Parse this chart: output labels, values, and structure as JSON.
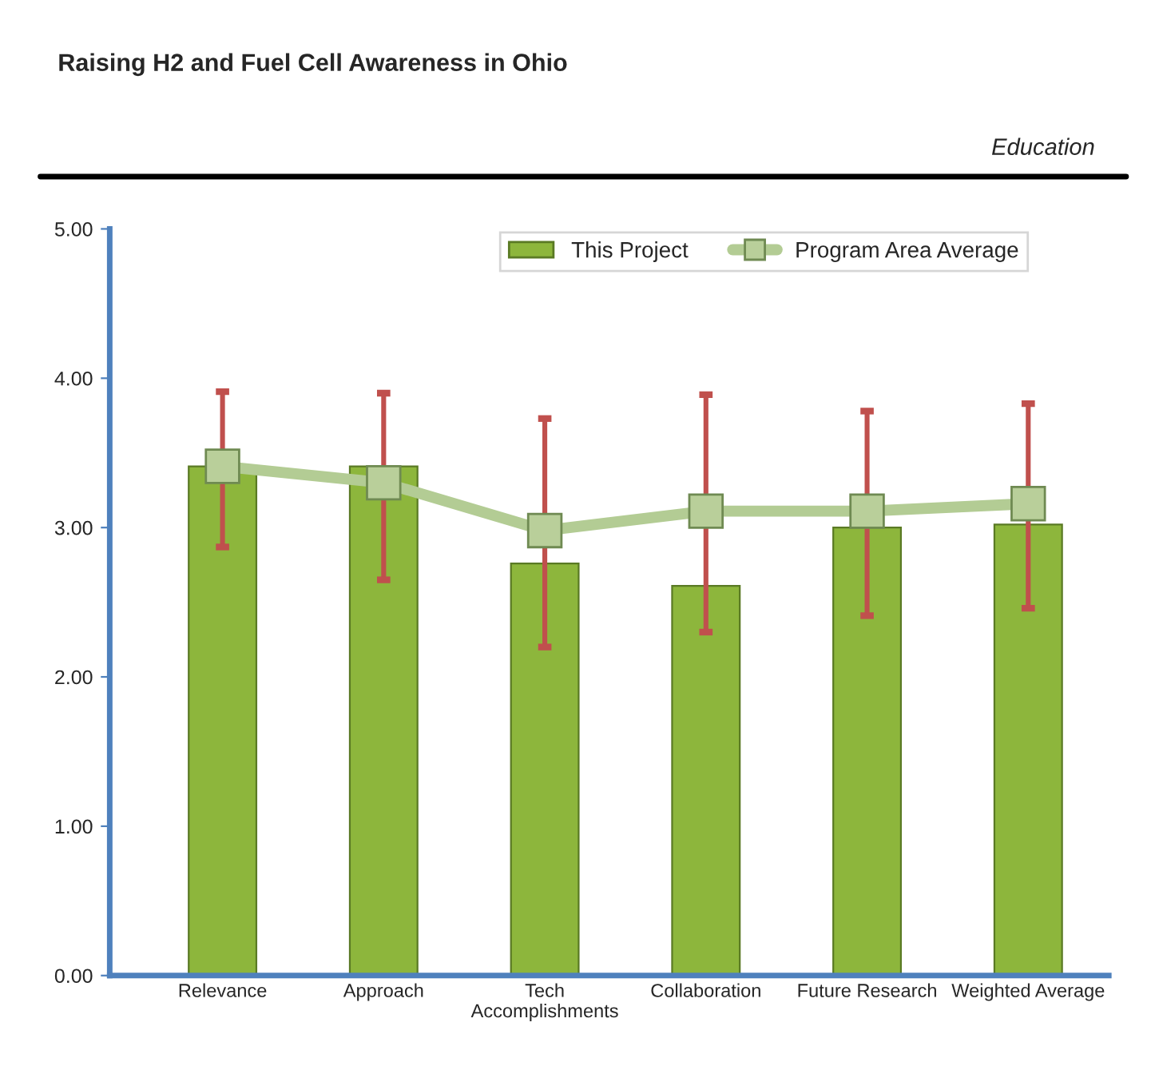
{
  "chart_data": {
    "type": "bar",
    "title": "Raising H2 and Fuel Cell Awareness in Ohio",
    "subtitle": "Education",
    "categories": [
      "Relevance",
      "Approach",
      "Tech\nAccomplishments",
      "Collaboration",
      "Future Research",
      "Weighted Average"
    ],
    "series": [
      {
        "name": "This Project",
        "color": "#8db63c",
        "values": [
          3.41,
          3.41,
          2.76,
          2.61,
          3.0,
          3.02
        ]
      },
      {
        "name": "Program Area Average",
        "type": "line",
        "color": "#b3cc94",
        "marker": "square",
        "values": [
          3.41,
          3.3,
          2.98,
          3.11,
          3.11,
          3.16
        ],
        "errors": [
          [
            2.87,
            3.91
          ],
          [
            2.65,
            3.9
          ],
          [
            2.2,
            3.73
          ],
          [
            2.3,
            3.89
          ],
          [
            2.41,
            3.78
          ],
          [
            2.46,
            3.83
          ]
        ]
      }
    ],
    "ylim": [
      0,
      5
    ],
    "yticks": [
      {
        "value": 0,
        "label": "0.00"
      },
      {
        "value": 1,
        "label": "1.00"
      },
      {
        "value": 2,
        "label": "2.00"
      },
      {
        "value": 3,
        "label": "3.00"
      },
      {
        "value": 4,
        "label": "4.00"
      },
      {
        "value": 5,
        "label": "5.00"
      }
    ],
    "legend": "top right",
    "grid": false
  }
}
